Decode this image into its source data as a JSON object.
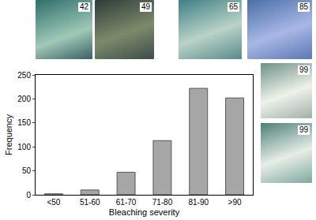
{
  "chart_data": {
    "type": "bar",
    "x_label": "Bleaching severity",
    "y_label": "Frequency",
    "categories": [
      "<50",
      "51-60",
      "61-70",
      "71-80",
      "81-90",
      ">90"
    ],
    "values": [
      2,
      10,
      47,
      113,
      222,
      202
    ],
    "color": "#a6a6a6",
    "ylim": [
      0,
      250
    ],
    "yticks": [
      0,
      50,
      100,
      150,
      200,
      250
    ],
    "grid": false,
    "annotations": [
      "42",
      "49",
      "65",
      "85",
      "99",
      "99"
    ]
  }
}
